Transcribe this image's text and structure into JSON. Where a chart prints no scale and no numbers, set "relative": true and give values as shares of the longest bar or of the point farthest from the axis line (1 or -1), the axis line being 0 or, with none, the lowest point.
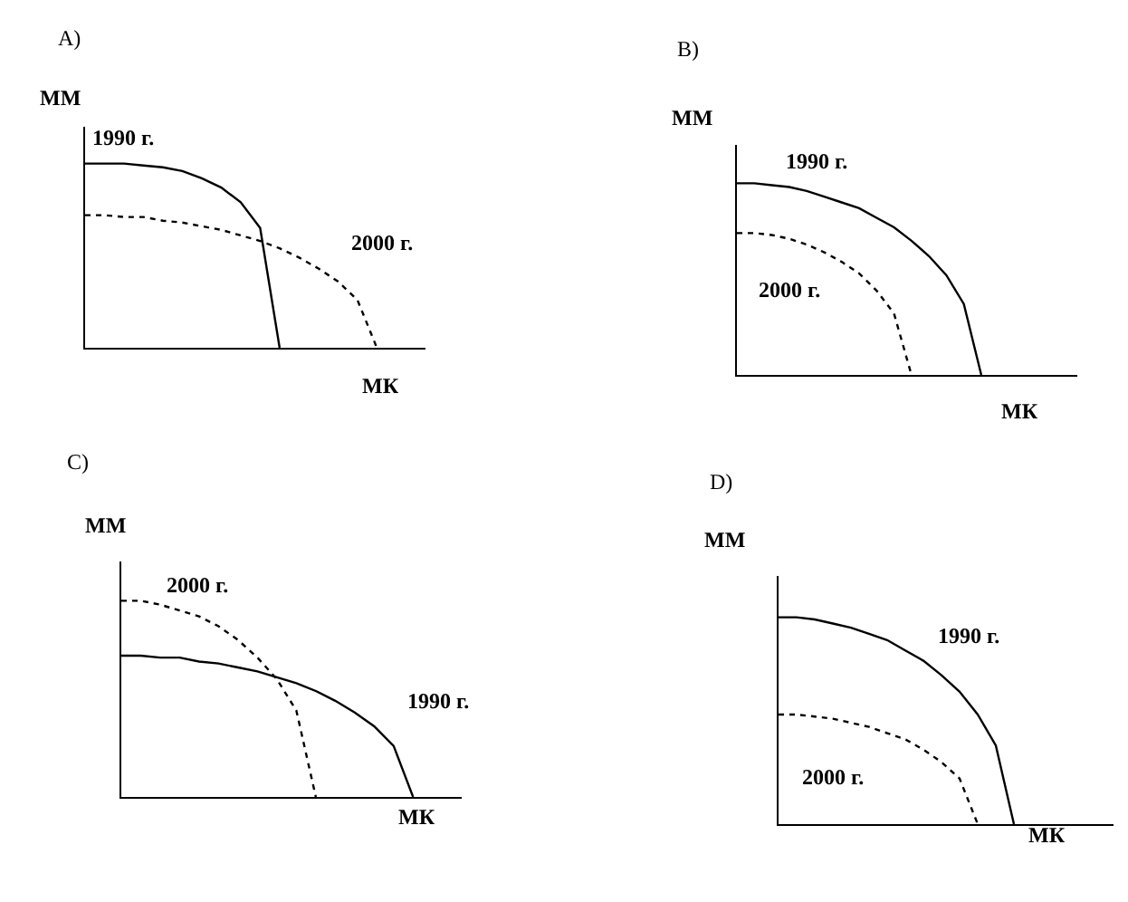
{
  "chart_data": [
    {
      "type": "line",
      "title": "A)",
      "ylabel": "ММ",
      "xlabel": "МК",
      "relative": true,
      "categories": [
        null,
        null,
        null,
        null,
        null,
        null,
        null,
        null,
        null,
        null,
        null,
        null,
        null,
        null,
        null,
        null,
        null,
        null
      ],
      "series": [
        {
          "name": "1990 г.",
          "color": "#000000",
          "line_style": "solid",
          "values": [
            1,
            1,
            1,
            0.99,
            0.98,
            0.96,
            0.92,
            0.87,
            0.79,
            0.65,
            0,
            null,
            null,
            null,
            null,
            null,
            null,
            null
          ]
        },
        {
          "name": "2000 г.",
          "color": "#000000",
          "line_style": "dotted",
          "values": [
            0.72,
            0.72,
            0.71,
            0.71,
            0.69,
            0.68,
            0.66,
            0.64,
            0.61,
            0.58,
            0.54,
            0.49,
            0.43,
            0.36,
            0.26,
            0,
            null,
            null
          ]
        }
      ]
    },
    {
      "type": "line",
      "title": "B)",
      "ylabel": "ММ",
      "xlabel": "МК",
      "relative": true,
      "categories": [
        null,
        null,
        null,
        null,
        null,
        null,
        null,
        null,
        null,
        null,
        null,
        null,
        null,
        null,
        null,
        null,
        null,
        null,
        null,
        null
      ],
      "series": [
        {
          "name": "1990 г.",
          "color": "#000000",
          "line_style": "solid",
          "values": [
            1,
            1,
            0.99,
            0.98,
            0.96,
            0.93,
            0.9,
            0.87,
            0.82,
            0.77,
            0.7,
            0.62,
            0.52,
            0.37,
            0,
            null,
            null,
            null,
            null,
            null
          ]
        },
        {
          "name": "2000 г.",
          "color": "#000000",
          "line_style": "dotted",
          "values": [
            0.74,
            0.74,
            0.73,
            0.71,
            0.68,
            0.64,
            0.59,
            0.53,
            0.44,
            0.32,
            0,
            null,
            null,
            null,
            null,
            null,
            null,
            null,
            null,
            null
          ]
        }
      ]
    },
    {
      "type": "line",
      "title": "C)",
      "ylabel": "ММ",
      "xlabel": "МК",
      "relative": true,
      "categories": [
        null,
        null,
        null,
        null,
        null,
        null,
        null,
        null,
        null,
        null,
        null,
        null,
        null,
        null,
        null,
        null,
        null,
        null
      ],
      "series": [
        {
          "name": "2000 г.",
          "color": "#000000",
          "line_style": "dotted",
          "values": [
            1,
            1,
            0.98,
            0.95,
            0.92,
            0.87,
            0.8,
            0.71,
            0.6,
            0.44,
            0,
            null,
            null,
            null,
            null,
            null,
            null,
            null
          ]
        },
        {
          "name": "1990 г.",
          "color": "#000000",
          "line_style": "solid",
          "values": [
            0.72,
            0.72,
            0.71,
            0.71,
            0.69,
            0.68,
            0.66,
            0.64,
            0.61,
            0.58,
            0.54,
            0.49,
            0.43,
            0.36,
            0.26,
            0,
            null,
            null
          ]
        }
      ]
    },
    {
      "type": "line",
      "title": "D)",
      "ylabel": "ММ",
      "xlabel": "МК",
      "relative": true,
      "categories": [
        null,
        null,
        null,
        null,
        null,
        null,
        null,
        null,
        null,
        null,
        null,
        null,
        null,
        null,
        null,
        null,
        null,
        null,
        null
      ],
      "series": [
        {
          "name": "1990 г.",
          "color": "#000000",
          "line_style": "solid",
          "values": [
            1,
            1,
            0.99,
            0.97,
            0.95,
            0.92,
            0.89,
            0.84,
            0.79,
            0.72,
            0.64,
            0.53,
            0.38,
            0,
            null,
            null,
            null,
            null,
            null
          ]
        },
        {
          "name": "2000 г.",
          "color": "#000000",
          "line_style": "dotted",
          "values": [
            0.53,
            0.53,
            0.52,
            0.51,
            0.49,
            0.47,
            0.44,
            0.41,
            0.36,
            0.3,
            0.22,
            0,
            null,
            null,
            null,
            null,
            null,
            null,
            null
          ]
        }
      ]
    }
  ]
}
